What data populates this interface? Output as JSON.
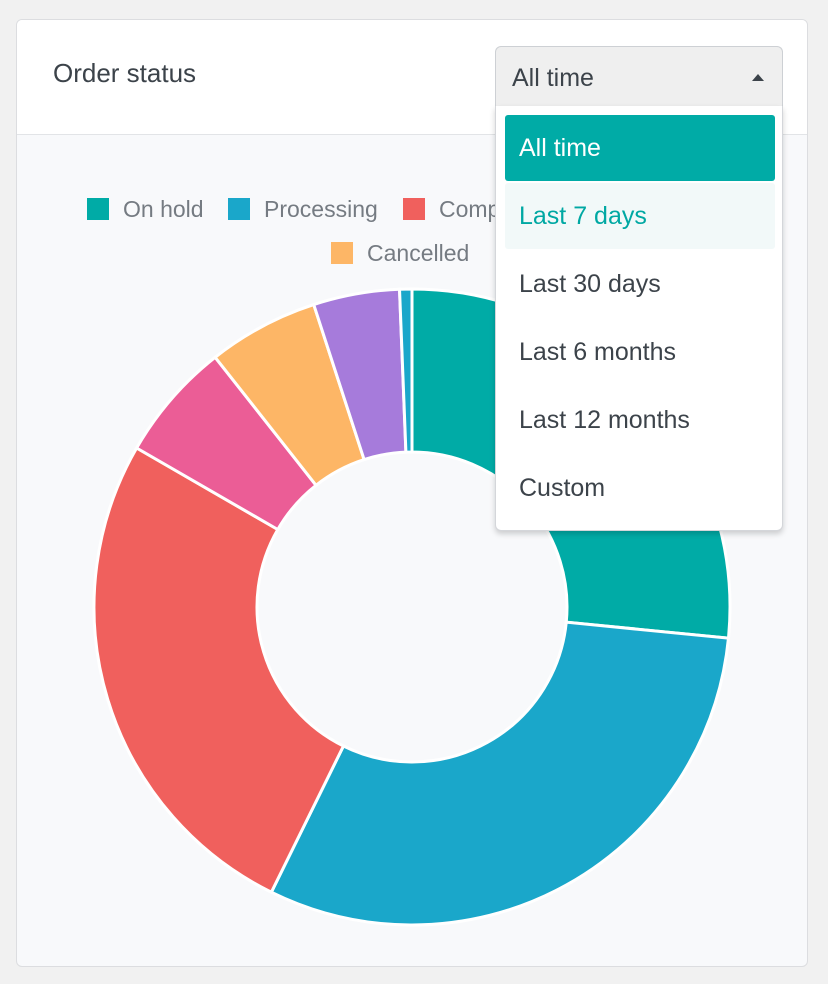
{
  "widget": {
    "title": "Order status"
  },
  "range_select": {
    "value": "All time",
    "options": [
      {
        "label": "All time",
        "state": "selected"
      },
      {
        "label": "Last 7 days",
        "state": "hover"
      },
      {
        "label": "Last 30 days",
        "state": ""
      },
      {
        "label": "Last 6 months",
        "state": ""
      },
      {
        "label": "Last 12 months",
        "state": ""
      },
      {
        "label": "Custom",
        "state": ""
      }
    ]
  },
  "legend": [
    {
      "label": "On hold",
      "color": "#00aba6"
    },
    {
      "label": "Processing",
      "color": "#1aa7ca"
    },
    {
      "label": "Comp",
      "color": "#f0605d"
    },
    {
      "label": "Cancelled",
      "color": "#fdb666"
    }
  ],
  "chart_data": {
    "type": "pie",
    "title": "",
    "legend_placement": "top",
    "slices": [
      {
        "name": "On hold",
        "color": "#00aba6",
        "value": 25.5
      },
      {
        "name": "Processing",
        "color": "#1aa7ca",
        "value": 29.5
      },
      {
        "name": "Comp",
        "color": "#f0605d",
        "value": 25.0
      },
      {
        "name": "",
        "color": "#eb5d96",
        "value": 5.8
      },
      {
        "name": "Cancelled",
        "color": "#fdb666",
        "value": 5.4
      },
      {
        "name": "",
        "color": "#a67bdb",
        "value": 4.2
      },
      {
        "name": "",
        "color": "#1aa7ca",
        "value": 0.6
      }
    ]
  }
}
